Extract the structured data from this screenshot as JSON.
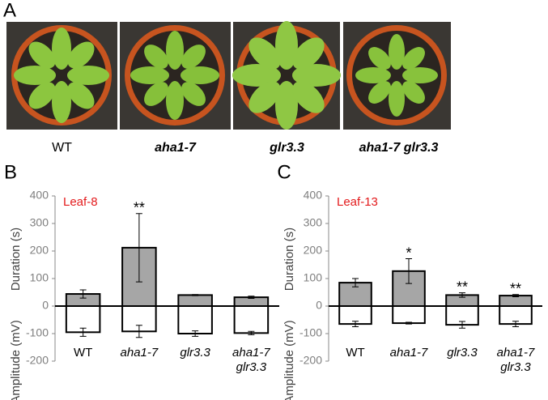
{
  "panel_a": {
    "label": "A",
    "photos": [
      "WT",
      "aha1-7",
      "glr3.3",
      "aha1-7 glr3.3"
    ]
  },
  "chart_data": [
    {
      "type": "bar",
      "panel": "B",
      "title": "Leaf-8",
      "ylabel_upper": "Duration (s)",
      "ylabel_lower": "Amplitude (mV)",
      "categories": [
        "WT",
        "aha1-7",
        "glr3.3",
        "aha1-7 glr3.3"
      ],
      "series": [
        {
          "color": "#a6a6a6",
          "values": [
            44,
            212,
            40,
            32
          ],
          "errors": [
            15,
            124,
            2,
            4
          ]
        },
        {
          "color": "#ffffff",
          "values": [
            -95,
            -92,
            -100,
            -98
          ],
          "errors": [
            15,
            22,
            10,
            6
          ]
        }
      ],
      "annotations": [
        null,
        "**",
        null,
        null
      ],
      "ylim": [
        -200,
        400
      ],
      "yticks": [
        -200,
        -100,
        0,
        100,
        200,
        300,
        400
      ]
    },
    {
      "type": "bar",
      "panel": "C",
      "title": "Leaf-13",
      "ylabel_upper": "Duration (s)",
      "ylabel_lower": "Amplitude (mV)",
      "categories": [
        "WT",
        "aha1-7",
        "glr3.3",
        "aha1-7 glr3.3"
      ],
      "series": [
        {
          "color": "#a6a6a6",
          "values": [
            85,
            127,
            40,
            38
          ],
          "errors": [
            15,
            45,
            8,
            4
          ]
        },
        {
          "color": "#ffffff",
          "values": [
            -65,
            -62,
            -68,
            -65
          ],
          "errors": [
            10,
            3,
            12,
            10
          ]
        }
      ],
      "annotations": [
        null,
        "*",
        "**",
        "**"
      ],
      "ylim": [
        -200,
        400
      ],
      "yticks": [
        -200,
        -100,
        0,
        100,
        200,
        300,
        400
      ]
    }
  ]
}
